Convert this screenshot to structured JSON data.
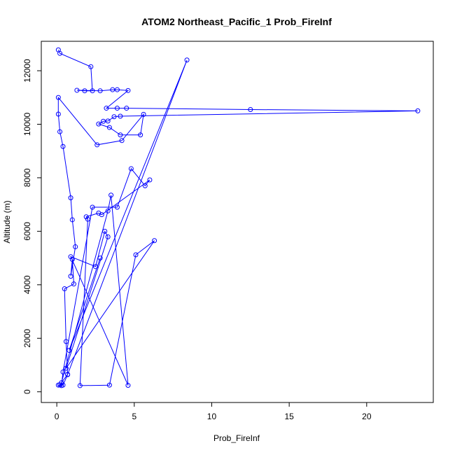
{
  "chart_data": {
    "type": "line",
    "title": "ATOM2 Northeast_Pacific_1 Prob_FireInf",
    "xlabel": "Prob_FireInf",
    "ylabel": "Altitude (m)",
    "xlim": [
      -1.0,
      24.3
    ],
    "ylim": [
      -400,
      13100
    ],
    "xticks": [
      0,
      5,
      10,
      15,
      20
    ],
    "yticks": [
      0,
      2000,
      4000,
      6000,
      8000,
      10000,
      12000
    ],
    "grid": false,
    "legend": "none",
    "marker": "open-circle",
    "series": [
      {
        "color": "#0000ff",
        "points": [
          [
            0.1,
            12780
          ],
          [
            0.2,
            12650
          ],
          [
            2.2,
            12150
          ],
          [
            2.3,
            11250
          ],
          [
            1.8,
            11250
          ],
          [
            1.3,
            11270
          ],
          [
            2.8,
            11250
          ],
          [
            3.6,
            11290
          ],
          [
            3.9,
            11290
          ],
          [
            4.6,
            11260
          ],
          [
            3.2,
            10600
          ],
          [
            3.9,
            10600
          ],
          [
            4.5,
            10600
          ],
          [
            12.5,
            10550
          ],
          [
            23.3,
            10500
          ],
          [
            4.1,
            10300
          ],
          [
            3.7,
            10280
          ],
          [
            3.3,
            10120
          ],
          [
            3.0,
            10110
          ],
          [
            2.7,
            10010
          ],
          [
            3.4,
            9880
          ],
          [
            4.1,
            9600
          ],
          [
            5.4,
            9600
          ],
          [
            5.6,
            10370
          ],
          [
            4.2,
            9390
          ],
          [
            2.6,
            9230
          ],
          [
            0.1,
            11000
          ],
          [
            0.1,
            10380
          ],
          [
            0.2,
            9720
          ],
          [
            0.4,
            9170
          ],
          [
            0.9,
            7250
          ],
          [
            1.0,
            6430
          ],
          [
            1.2,
            5420
          ],
          [
            0.9,
            4320
          ],
          [
            1.0,
            4950
          ],
          [
            1.1,
            4030
          ],
          [
            0.5,
            3850
          ],
          [
            0.6,
            1880
          ],
          [
            0.7,
            640
          ],
          [
            0.4,
            250
          ],
          [
            0.2,
            260
          ],
          [
            0.1,
            250
          ],
          [
            0.3,
            230
          ],
          [
            0.4,
            740
          ],
          [
            2.3,
            6900
          ],
          [
            3.9,
            6900
          ],
          [
            4.8,
            8340
          ],
          [
            5.7,
            7700
          ],
          [
            6.0,
            7920
          ],
          [
            2.9,
            6620
          ],
          [
            2.7,
            6680
          ],
          [
            1.9,
            6540
          ],
          [
            2.0,
            6450
          ],
          [
            1.5,
            230
          ],
          [
            3.4,
            250
          ],
          [
            5.1,
            5120
          ],
          [
            6.3,
            5650
          ],
          [
            0.6,
            880
          ],
          [
            3.3,
            5790
          ],
          [
            3.1,
            6000
          ],
          [
            2.5,
            4680
          ],
          [
            0.9,
            5050
          ],
          [
            4.6,
            240
          ],
          [
            3.5,
            7350
          ],
          [
            3.3,
            6760
          ],
          [
            0.3,
            340
          ],
          [
            0.7,
            650
          ],
          [
            8.4,
            12400
          ],
          [
            0.8,
            1550
          ],
          [
            2.8,
            5000
          ]
        ]
      }
    ]
  }
}
